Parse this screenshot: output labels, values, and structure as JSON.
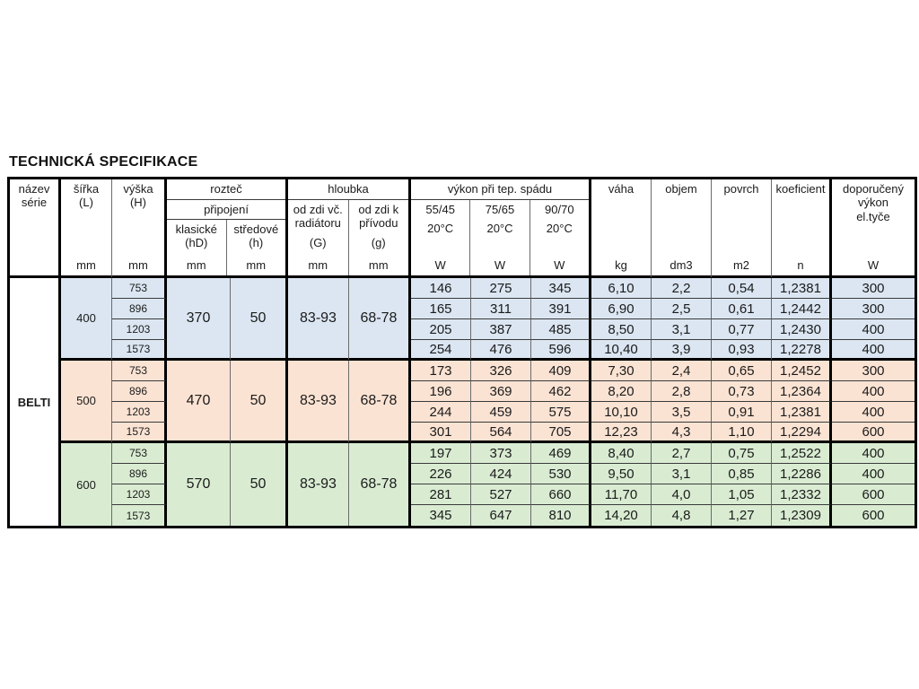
{
  "title": "TECHNICKÁ SPECIFIKACE",
  "table": {
    "header": {
      "nazev": "název\nsérie",
      "sirka": {
        "label": "šířka",
        "sub": "(L)",
        "unit": "mm"
      },
      "vyska": {
        "label": "výška",
        "sub": "(H)",
        "unit": "mm"
      },
      "roztec": "rozteč",
      "pripojeni": "připojení",
      "klasicke": {
        "label": "klasické",
        "sub": "(hD)",
        "unit": "mm"
      },
      "stredove": {
        "label": "středové",
        "sub": "(h)",
        "unit": "mm"
      },
      "hloubka": "hloubka",
      "od_zdi_radiator": {
        "label": "od zdi  vč.\nradiátoru",
        "sub": "(G)",
        "unit": "mm"
      },
      "od_zdi_privod": {
        "label": "od zdi  k\npřívodu",
        "sub": "(g)",
        "unit": "mm"
      },
      "vykon": "výkon při tep.  spádu",
      "spad_5545": {
        "label": "55/45",
        "sub": "20°C",
        "unit": "W"
      },
      "spad_7565": {
        "label": "75/65",
        "sub": "20°C",
        "unit": "W"
      },
      "spad_9070": {
        "label": "90/70",
        "sub": "20°C",
        "unit": "W"
      },
      "vaha": {
        "label": "váha",
        "unit": "kg"
      },
      "objem": {
        "label": "objem",
        "unit": "dm3"
      },
      "povrch": {
        "label": "povrch",
        "unit": "m2"
      },
      "koeficient": {
        "label": "koeficient",
        "unit": "n"
      },
      "doporuceny": {
        "label": "doporučený\nvýkon\nel.tyče",
        "unit": "W"
      }
    },
    "series": "BELTI",
    "section_colors": {
      "s400": "#dbe6f2",
      "s500": "#fbe3d3",
      "s600": "#d9ecd2"
    },
    "sections": [
      {
        "width": "400",
        "bg": "#dbe6f2",
        "klasicke": "370",
        "stredove": "50",
        "od_zdi_radiator": "83-93",
        "od_zdi_privod": "68-78",
        "rows": [
          {
            "vyska": "753",
            "w5545": "146",
            "w7565": "275",
            "w9070": "345",
            "vaha": "6,10",
            "objem": "2,2",
            "povrch": "0,54",
            "koeficient": "1,2381",
            "doporuceny": "300"
          },
          {
            "vyska": "896",
            "w5545": "165",
            "w7565": "311",
            "w9070": "391",
            "vaha": "6,90",
            "objem": "2,5",
            "povrch": "0,61",
            "koeficient": "1,2442",
            "doporuceny": "300"
          },
          {
            "vyska": "1203",
            "w5545": "205",
            "w7565": "387",
            "w9070": "485",
            "vaha": "8,50",
            "objem": "3,1",
            "povrch": "0,77",
            "koeficient": "1,2430",
            "doporuceny": "400"
          },
          {
            "vyska": "1573",
            "w5545": "254",
            "w7565": "476",
            "w9070": "596",
            "vaha": "10,40",
            "objem": "3,9",
            "povrch": "0,93",
            "koeficient": "1,2278",
            "doporuceny": "400"
          }
        ]
      },
      {
        "width": "500",
        "bg": "#fbe3d3",
        "klasicke": "470",
        "stredove": "50",
        "od_zdi_radiator": "83-93",
        "od_zdi_privod": "68-78",
        "rows": [
          {
            "vyska": "753",
            "w5545": "173",
            "w7565": "326",
            "w9070": "409",
            "vaha": "7,30",
            "objem": "2,4",
            "povrch": "0,65",
            "koeficient": "1,2452",
            "doporuceny": "300"
          },
          {
            "vyska": "896",
            "w5545": "196",
            "w7565": "369",
            "w9070": "462",
            "vaha": "8,20",
            "objem": "2,8",
            "povrch": "0,73",
            "koeficient": "1,2364",
            "doporuceny": "400"
          },
          {
            "vyska": "1203",
            "w5545": "244",
            "w7565": "459",
            "w9070": "575",
            "vaha": "10,10",
            "objem": "3,5",
            "povrch": "0,91",
            "koeficient": "1,2381",
            "doporuceny": "400"
          },
          {
            "vyska": "1573",
            "w5545": "301",
            "w7565": "564",
            "w9070": "705",
            "vaha": "12,23",
            "objem": "4,3",
            "povrch": "1,10",
            "koeficient": "1,2294",
            "doporuceny": "600"
          }
        ]
      },
      {
        "width": "600",
        "bg": "#d9ecd2",
        "klasicke": "570",
        "stredove": "50",
        "od_zdi_radiator": "83-93",
        "od_zdi_privod": "68-78",
        "rows": [
          {
            "vyska": "753",
            "w5545": "197",
            "w7565": "373",
            "w9070": "469",
            "vaha": "8,40",
            "objem": "2,7",
            "povrch": "0,75",
            "koeficient": "1,2522",
            "doporuceny": "400"
          },
          {
            "vyska": "896",
            "w5545": "226",
            "w7565": "424",
            "w9070": "530",
            "vaha": "9,50",
            "objem": "3,1",
            "povrch": "0,85",
            "koeficient": "1,2286",
            "doporuceny": "400"
          },
          {
            "vyska": "1203",
            "w5545": "281",
            "w7565": "527",
            "w9070": "660",
            "vaha": "11,70",
            "objem": "4,0",
            "povrch": "1,05",
            "koeficient": "1,2332",
            "doporuceny": "600"
          },
          {
            "vyska": "1573",
            "w5545": "345",
            "w7565": "647",
            "w9070": "810",
            "vaha": "14,20",
            "objem": "4,8",
            "povrch": "1,27",
            "koeficient": "1,2309",
            "doporuceny": "600"
          }
        ]
      }
    ]
  }
}
